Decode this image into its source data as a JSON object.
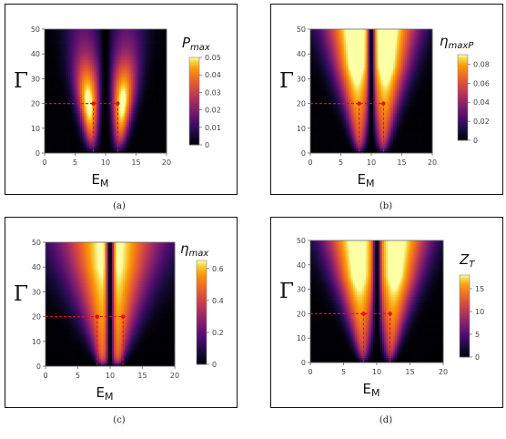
{
  "figure": {
    "panels": [
      {
        "id": "a",
        "caption": "(a)",
        "cb_main": "P",
        "cb_sub": "max",
        "cb_ticks": [
          "0.05",
          "0.04",
          "0.03",
          "0.02",
          "0.01",
          "0"
        ],
        "variant": "Pmax"
      },
      {
        "id": "b",
        "caption": "(b)",
        "cb_main": "η",
        "cb_sub": "maxP",
        "cb_ticks": [
          "0.08",
          "0.06",
          "0.04",
          "0.02",
          "0"
        ],
        "variant": "etaP"
      },
      {
        "id": "c",
        "caption": "(c)",
        "cb_main": "η",
        "cb_sub": "max",
        "cb_ticks": [
          "0.6",
          "0.4",
          "0.2",
          "0"
        ],
        "variant": "eta"
      },
      {
        "id": "d",
        "caption": "(d)",
        "cb_main": "Z",
        "cb_sub": "T",
        "cb_ticks": [
          "15",
          "10",
          "5",
          "0"
        ],
        "variant": "ZT"
      }
    ],
    "x_ticks": [
      "0",
      "5",
      "10",
      "15",
      "20"
    ],
    "y_ticks": [
      "50",
      "40",
      "30",
      "20",
      "10",
      "0"
    ],
    "x_label_main": "E",
    "x_label_sub": "M",
    "y_label": "Γ"
  },
  "chart_data": [
    {
      "type": "heatmap",
      "panel": "a",
      "colorbar": "P_max",
      "xlabel": "E_M",
      "ylabel": "Γ",
      "xlim": [
        0,
        20
      ],
      "ylim": [
        0,
        50
      ],
      "colorbar_range": [
        0,
        0.05
      ],
      "marked_points": [
        {
          "x": 8,
          "y": 20
        },
        {
          "x": 12,
          "y": 20
        }
      ]
    },
    {
      "type": "heatmap",
      "panel": "b",
      "colorbar": "η_maxP",
      "xlabel": "E_M",
      "ylabel": "Γ",
      "xlim": [
        0,
        20
      ],
      "ylim": [
        0,
        50
      ],
      "colorbar_range": [
        0,
        0.09
      ],
      "marked_points": [
        {
          "x": 8,
          "y": 20
        },
        {
          "x": 12,
          "y": 20
        }
      ]
    },
    {
      "type": "heatmap",
      "panel": "c",
      "colorbar": "η_max",
      "xlabel": "E_M",
      "ylabel": "Γ",
      "xlim": [
        0,
        20
      ],
      "ylim": [
        0,
        50
      ],
      "colorbar_range": [
        0,
        0.65
      ],
      "marked_points": [
        {
          "x": 8,
          "y": 20
        },
        {
          "x": 12,
          "y": 20
        }
      ]
    },
    {
      "type": "heatmap",
      "panel": "d",
      "colorbar": "Z_T",
      "xlabel": "E_M",
      "ylabel": "Γ",
      "xlim": [
        0,
        20
      ],
      "ylim": [
        0,
        50
      ],
      "colorbar_range": [
        0,
        18
      ],
      "marked_points": [
        {
          "x": 8,
          "y": 20
        },
        {
          "x": 12,
          "y": 20
        }
      ]
    }
  ],
  "colors": {
    "marker": "#e01010",
    "frame": "#111111"
  }
}
